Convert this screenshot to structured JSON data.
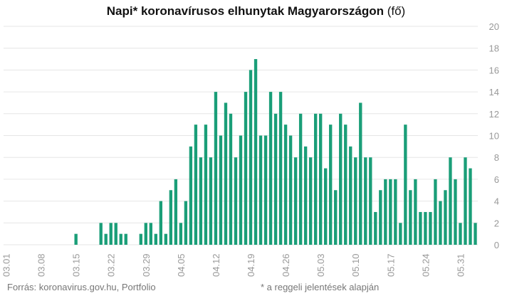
{
  "title": {
    "bold": "Napi* koronavírusos elhunytak Magyarországon",
    "unit": "(fő)"
  },
  "footer": {
    "source": "Forrás: koronavirus.gov.hu, Portfolio",
    "note": "* a reggeli jelentések alapján"
  },
  "colors": {
    "bar": "#1a9e78",
    "grid": "#e6e6e6",
    "tick": "#999999"
  },
  "chart_data": {
    "type": "bar",
    "title": "Napi* koronavírusos elhunytak Magyarországon (fő)",
    "ylim": [
      0,
      20
    ],
    "yticks": [
      0,
      2,
      4,
      6,
      8,
      10,
      12,
      14,
      16,
      18,
      20
    ],
    "y_axis_position": "right",
    "grid": true,
    "x_tick_labels": [
      "03.01",
      "03.08",
      "03.15",
      "03.22",
      "03.29",
      "04.05",
      "04.12",
      "04.19",
      "04.26",
      "05.03",
      "05.10",
      "05.17",
      "05.24",
      "05.31"
    ],
    "start_date": "03.01",
    "end_date": "05.31",
    "values": [
      0,
      0,
      0,
      0,
      0,
      0,
      0,
      0,
      0,
      0,
      0,
      0,
      0,
      0,
      1,
      0,
      0,
      0,
      0,
      2,
      1,
      2,
      2,
      1,
      1,
      0,
      0,
      1,
      2,
      2,
      1,
      4,
      1,
      5,
      6,
      2,
      4,
      9,
      11,
      8,
      11,
      8,
      14,
      10,
      13,
      12,
      8,
      10,
      14,
      16,
      17,
      10,
      10,
      14,
      12,
      14,
      11,
      10,
      8,
      12,
      9,
      8,
      12,
      12,
      7,
      11,
      5,
      12,
      11,
      9,
      8,
      13,
      8,
      8,
      3,
      5,
      6,
      6,
      6,
      2,
      11,
      5,
      6,
      3,
      3,
      3,
      6,
      4,
      5,
      8,
      6,
      2,
      8,
      7,
      2
    ]
  }
}
